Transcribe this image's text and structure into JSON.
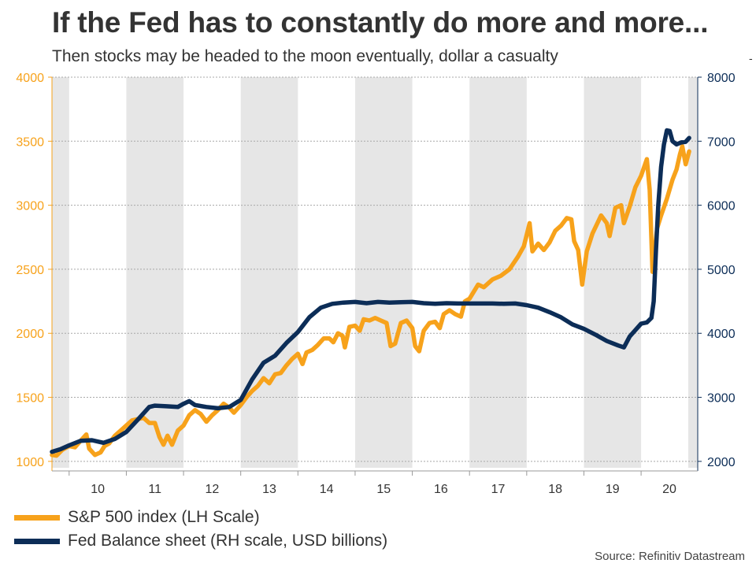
{
  "header": {
    "title": "If the Fed has to constantly do more and more...",
    "subtitle": "Then stocks may be headed to the moon eventually, dollar a casualty",
    "corner_mark": "-"
  },
  "legend": {
    "items": [
      {
        "label": "S&P 500 index (LH Scale)",
        "color": "#F7A21B"
      },
      {
        "label": "Fed Balance sheet (RH scale, USD billions)",
        "color": "#0C2D57"
      }
    ]
  },
  "source": "Source: Refinitiv Datastream",
  "chart_data": {
    "type": "line",
    "title": "If the Fed has to constantly do more and more...",
    "x_categories": [
      "10",
      "11",
      "12",
      "13",
      "14",
      "15",
      "16",
      "17",
      "18",
      "19",
      "20"
    ],
    "x_range": [
      2009.7,
      2020.99
    ],
    "left_axis": {
      "ylim": [
        950,
        4000
      ],
      "ticks": [
        1000,
        1500,
        2000,
        2500,
        3000,
        3500,
        4000
      ],
      "color": "#F7A21B"
    },
    "right_axis": {
      "ylim": [
        1900,
        8000
      ],
      "ticks": [
        2000,
        3000,
        4000,
        5000,
        6000,
        7000,
        8000
      ],
      "color": "#0C2D57"
    },
    "shaded_years": [
      2009,
      2011,
      2013,
      2015,
      2017,
      2019
    ],
    "series": [
      {
        "name": "S&P 500 index (LH Scale)",
        "axis": "left",
        "color": "#F7A21B",
        "points": [
          [
            2009.7,
            1050
          ],
          [
            2009.78,
            1045
          ],
          [
            2009.88,
            1090
          ],
          [
            2010.0,
            1120
          ],
          [
            2010.1,
            1110
          ],
          [
            2010.2,
            1160
          ],
          [
            2010.3,
            1210
          ],
          [
            2010.35,
            1100
          ],
          [
            2010.45,
            1050
          ],
          [
            2010.55,
            1070
          ],
          [
            2010.62,
            1120
          ],
          [
            2010.7,
            1140
          ],
          [
            2010.8,
            1200
          ],
          [
            2010.9,
            1240
          ],
          [
            2011.0,
            1280
          ],
          [
            2011.1,
            1320
          ],
          [
            2011.2,
            1330
          ],
          [
            2011.3,
            1340
          ],
          [
            2011.4,
            1300
          ],
          [
            2011.5,
            1300
          ],
          [
            2011.58,
            1190
          ],
          [
            2011.65,
            1130
          ],
          [
            2011.72,
            1200
          ],
          [
            2011.8,
            1130
          ],
          [
            2011.9,
            1240
          ],
          [
            2012.0,
            1280
          ],
          [
            2012.1,
            1360
          ],
          [
            2012.2,
            1400
          ],
          [
            2012.3,
            1370
          ],
          [
            2012.4,
            1310
          ],
          [
            2012.5,
            1360
          ],
          [
            2012.6,
            1400
          ],
          [
            2012.7,
            1450
          ],
          [
            2012.8,
            1420
          ],
          [
            2012.88,
            1380
          ],
          [
            2013.0,
            1440
          ],
          [
            2013.1,
            1500
          ],
          [
            2013.2,
            1550
          ],
          [
            2013.3,
            1590
          ],
          [
            2013.4,
            1650
          ],
          [
            2013.5,
            1610
          ],
          [
            2013.6,
            1680
          ],
          [
            2013.7,
            1690
          ],
          [
            2013.8,
            1750
          ],
          [
            2013.9,
            1800
          ],
          [
            2014.0,
            1840
          ],
          [
            2014.08,
            1760
          ],
          [
            2014.15,
            1850
          ],
          [
            2014.25,
            1870
          ],
          [
            2014.35,
            1910
          ],
          [
            2014.45,
            1960
          ],
          [
            2014.55,
            1960
          ],
          [
            2014.62,
            1930
          ],
          [
            2014.7,
            2000
          ],
          [
            2014.78,
            1980
          ],
          [
            2014.82,
            1890
          ],
          [
            2014.9,
            2050
          ],
          [
            2015.0,
            2060
          ],
          [
            2015.08,
            2020
          ],
          [
            2015.15,
            2110
          ],
          [
            2015.25,
            2100
          ],
          [
            2015.35,
            2120
          ],
          [
            2015.45,
            2100
          ],
          [
            2015.55,
            2080
          ],
          [
            2015.62,
            1900
          ],
          [
            2015.7,
            1920
          ],
          [
            2015.8,
            2080
          ],
          [
            2015.9,
            2100
          ],
          [
            2016.0,
            2040
          ],
          [
            2016.05,
            1900
          ],
          [
            2016.12,
            1860
          ],
          [
            2016.2,
            2020
          ],
          [
            2016.3,
            2080
          ],
          [
            2016.4,
            2090
          ],
          [
            2016.48,
            2040
          ],
          [
            2016.55,
            2150
          ],
          [
            2016.65,
            2180
          ],
          [
            2016.75,
            2150
          ],
          [
            2016.85,
            2130
          ],
          [
            2016.92,
            2250
          ],
          [
            2017.0,
            2270
          ],
          [
            2017.15,
            2380
          ],
          [
            2017.25,
            2360
          ],
          [
            2017.4,
            2420
          ],
          [
            2017.55,
            2450
          ],
          [
            2017.7,
            2500
          ],
          [
            2017.85,
            2600
          ],
          [
            2017.95,
            2680
          ],
          [
            2018.05,
            2860
          ],
          [
            2018.1,
            2640
          ],
          [
            2018.2,
            2700
          ],
          [
            2018.3,
            2650
          ],
          [
            2018.4,
            2710
          ],
          [
            2018.5,
            2800
          ],
          [
            2018.6,
            2840
          ],
          [
            2018.7,
            2900
          ],
          [
            2018.78,
            2890
          ],
          [
            2018.83,
            2720
          ],
          [
            2018.9,
            2650
          ],
          [
            2018.97,
            2380
          ],
          [
            2019.05,
            2640
          ],
          [
            2019.15,
            2780
          ],
          [
            2019.3,
            2920
          ],
          [
            2019.4,
            2860
          ],
          [
            2019.45,
            2760
          ],
          [
            2019.55,
            2980
          ],
          [
            2019.65,
            3000
          ],
          [
            2019.7,
            2860
          ],
          [
            2019.8,
            2990
          ],
          [
            2019.9,
            3140
          ],
          [
            2020.0,
            3230
          ],
          [
            2020.1,
            3360
          ],
          [
            2020.15,
            3120
          ],
          [
            2020.2,
            2480
          ],
          [
            2020.28,
            2820
          ],
          [
            2020.35,
            2920
          ],
          [
            2020.45,
            3050
          ],
          [
            2020.55,
            3200
          ],
          [
            2020.62,
            3280
          ],
          [
            2020.68,
            3400
          ],
          [
            2020.72,
            3460
          ],
          [
            2020.78,
            3320
          ],
          [
            2020.84,
            3420
          ]
        ]
      },
      {
        "name": "Fed Balance sheet (RH scale, USD billions)",
        "axis": "right",
        "color": "#0C2D57",
        "points": [
          [
            2009.7,
            2150
          ],
          [
            2009.85,
            2190
          ],
          [
            2010.0,
            2250
          ],
          [
            2010.2,
            2320
          ],
          [
            2010.4,
            2330
          ],
          [
            2010.6,
            2290
          ],
          [
            2010.8,
            2350
          ],
          [
            2011.0,
            2460
          ],
          [
            2011.2,
            2650
          ],
          [
            2011.4,
            2850
          ],
          [
            2011.5,
            2870
          ],
          [
            2011.7,
            2860
          ],
          [
            2011.9,
            2850
          ],
          [
            2012.0,
            2900
          ],
          [
            2012.1,
            2940
          ],
          [
            2012.2,
            2880
          ],
          [
            2012.4,
            2850
          ],
          [
            2012.6,
            2830
          ],
          [
            2012.8,
            2850
          ],
          [
            2013.0,
            2960
          ],
          [
            2013.2,
            3280
          ],
          [
            2013.4,
            3540
          ],
          [
            2013.6,
            3650
          ],
          [
            2013.8,
            3850
          ],
          [
            2014.0,
            4020
          ],
          [
            2014.2,
            4250
          ],
          [
            2014.4,
            4400
          ],
          [
            2014.6,
            4460
          ],
          [
            2014.8,
            4480
          ],
          [
            2015.0,
            4490
          ],
          [
            2015.2,
            4470
          ],
          [
            2015.4,
            4490
          ],
          [
            2015.6,
            4480
          ],
          [
            2015.8,
            4485
          ],
          [
            2016.0,
            4490
          ],
          [
            2016.2,
            4470
          ],
          [
            2016.4,
            4460
          ],
          [
            2016.6,
            4470
          ],
          [
            2016.8,
            4465
          ],
          [
            2017.0,
            4465
          ],
          [
            2017.2,
            4465
          ],
          [
            2017.4,
            4465
          ],
          [
            2017.6,
            4460
          ],
          [
            2017.8,
            4465
          ],
          [
            2018.0,
            4440
          ],
          [
            2018.2,
            4400
          ],
          [
            2018.4,
            4330
          ],
          [
            2018.6,
            4250
          ],
          [
            2018.8,
            4140
          ],
          [
            2019.0,
            4070
          ],
          [
            2019.2,
            3980
          ],
          [
            2019.4,
            3880
          ],
          [
            2019.6,
            3810
          ],
          [
            2019.7,
            3780
          ],
          [
            2019.8,
            3950
          ],
          [
            2019.9,
            4050
          ],
          [
            2020.0,
            4150
          ],
          [
            2020.1,
            4170
          ],
          [
            2020.18,
            4240
          ],
          [
            2020.22,
            4500
          ],
          [
            2020.26,
            5300
          ],
          [
            2020.3,
            6000
          ],
          [
            2020.35,
            6600
          ],
          [
            2020.4,
            6950
          ],
          [
            2020.45,
            7170
          ],
          [
            2020.5,
            7160
          ],
          [
            2020.55,
            7000
          ],
          [
            2020.62,
            6950
          ],
          [
            2020.7,
            6980
          ],
          [
            2020.78,
            6990
          ],
          [
            2020.84,
            7050
          ]
        ]
      }
    ]
  }
}
